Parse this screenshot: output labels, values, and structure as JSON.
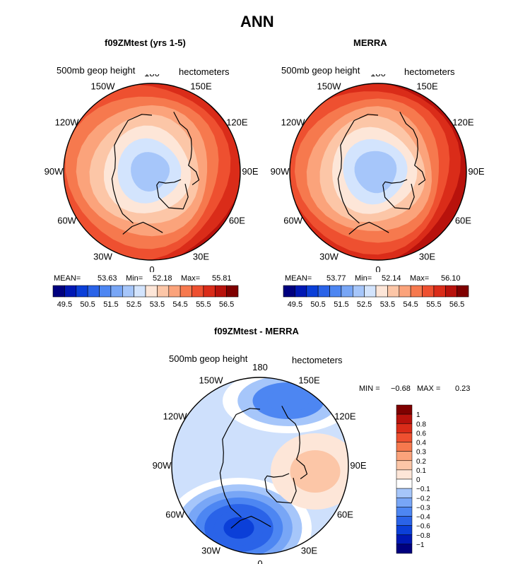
{
  "title": "ANN",
  "chart_data": [
    {
      "type": "heatmap",
      "projection": "polar-stereographic",
      "hemisphere": "north",
      "title": "f09ZMtest (yrs 1-5)",
      "variable": "500mb geop height",
      "units": "hectometers",
      "lon_labels": [
        "180",
        "150E",
        "120E",
        "90E",
        "60E",
        "30E",
        "0",
        "30W",
        "60W",
        "90W",
        "120W",
        "150W"
      ],
      "stats": {
        "mean_label": "MEAN=",
        "mean": "53.63",
        "min_label": "Min=",
        "min": "52.18",
        "max_label": "Max=",
        "max": "55.81"
      },
      "levels": [
        49.5,
        50.0,
        50.5,
        51.0,
        51.5,
        52.0,
        52.5,
        53.0,
        53.5,
        54.0,
        54.5,
        55.0,
        55.5,
        56.0,
        56.5
      ],
      "colorbar_labels": [
        "49.5",
        "50.5",
        "51.5",
        "52.5",
        "53.5",
        "54.5",
        "55.5",
        "56.5"
      ],
      "field": {
        "polar_low_center_lon": 100,
        "polar_low_value": 52.2,
        "equatorward_edge_value": 55.8
      }
    },
    {
      "type": "heatmap",
      "projection": "polar-stereographic",
      "hemisphere": "north",
      "title": "MERRA",
      "variable": "500mb geop height",
      "units": "hectometers",
      "lon_labels": [
        "180",
        "150E",
        "120E",
        "90E",
        "60E",
        "30E",
        "0",
        "30W",
        "60W",
        "90W",
        "120W",
        "150W"
      ],
      "stats": {
        "mean_label": "MEAN=",
        "mean": "53.77",
        "min_label": "Min=",
        "min": "52.14",
        "max_label": "Max=",
        "max": "56.10"
      },
      "levels": [
        49.5,
        50.0,
        50.5,
        51.0,
        51.5,
        52.0,
        52.5,
        53.0,
        53.5,
        54.0,
        54.5,
        55.0,
        55.5,
        56.0,
        56.5
      ],
      "colorbar_labels": [
        "49.5",
        "50.5",
        "51.5",
        "52.5",
        "53.5",
        "54.5",
        "55.5",
        "56.5"
      ],
      "field": {
        "polar_low_center_lon": 100,
        "polar_low_value": 52.1,
        "equatorward_edge_value": 56.1
      }
    },
    {
      "type": "heatmap",
      "projection": "polar-stereographic",
      "hemisphere": "north",
      "title": "f09ZMtest - MERRA",
      "variable": "500mb geop height",
      "units": "hectometers",
      "lon_labels": [
        "180",
        "150E",
        "120E",
        "90E",
        "60E",
        "30E",
        "0",
        "30W",
        "60W",
        "90W",
        "120W",
        "150W"
      ],
      "minmax": {
        "min_label": "MIN =",
        "min": "−0.68",
        "max_label": "MAX =",
        "max": "0.23"
      },
      "levels": [
        -1,
        -0.8,
        -0.6,
        -0.4,
        -0.3,
        -0.2,
        -0.1,
        0,
        0.1,
        0.2,
        0.3,
        0.4,
        0.6,
        0.8,
        1
      ],
      "colorbar_labels": [
        "1",
        "0.8",
        "0.6",
        "0.4",
        "0.3",
        "0.2",
        "0.1",
        "0",
        "−0.1",
        "−0.2",
        "−0.3",
        "−0.4",
        "−0.6",
        "−0.8",
        "−1"
      ],
      "anomalies": [
        {
          "location": "near 0 / 30W (Europe-N Atlantic)",
          "value": -0.68
        },
        {
          "location": "near 150E-180",
          "value": -0.4
        },
        {
          "location": "near 60E-90E",
          "value": 0.23
        }
      ]
    }
  ],
  "colors": {
    "abs_scale": [
      "#00007f",
      "#0018b4",
      "#0b3fd8",
      "#2a63e8",
      "#4d86f2",
      "#78a6f6",
      "#a6c6fa",
      "#d3e4fd",
      "#fde6d8",
      "#fcc6a7",
      "#fba37b",
      "#f6794e",
      "#ee5030",
      "#da2c19",
      "#b8120c",
      "#7f0000"
    ],
    "diff_scale": [
      "#7f0000",
      "#b8120c",
      "#da2c19",
      "#ee5030",
      "#f6794e",
      "#fba37b",
      "#fcc6a7",
      "#fde6d8",
      "#ffffff",
      "#a6c6fa",
      "#78a6f6",
      "#4d86f2",
      "#2a63e8",
      "#0b3fd8",
      "#0018b4",
      "#00007f"
    ]
  }
}
